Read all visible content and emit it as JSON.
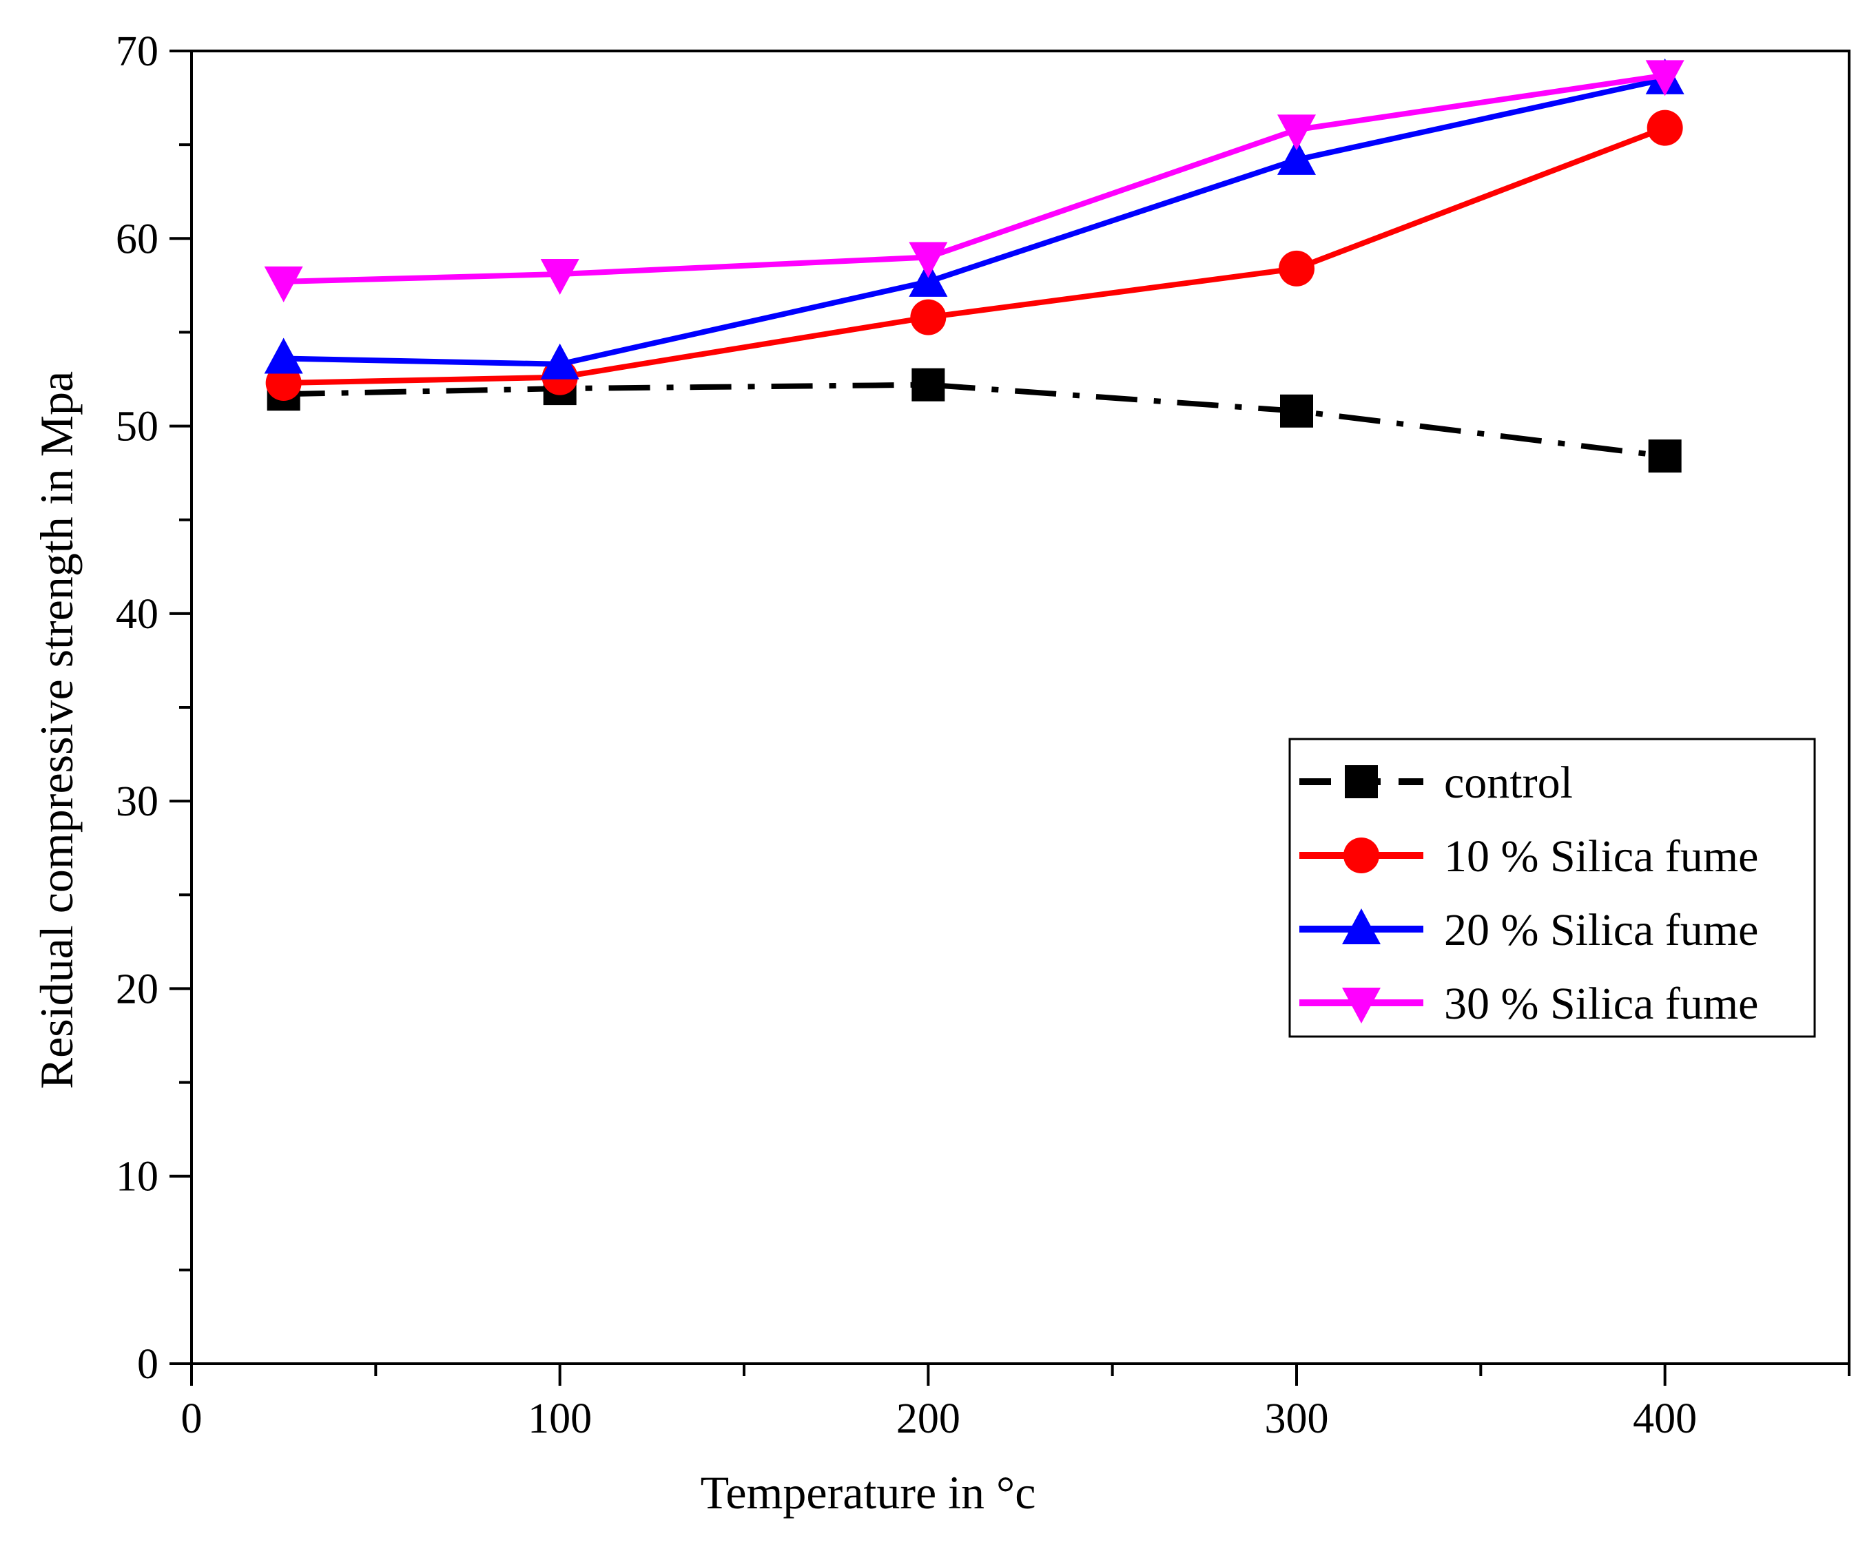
{
  "chart_data": {
    "type": "line",
    "title": "",
    "xlabel": "Temperature in °c",
    "ylabel": "Residual compressive strength in Mpa",
    "xlim": [
      0,
      450
    ],
    "ylim": [
      0,
      70
    ],
    "x_ticks": [
      0,
      100,
      200,
      300,
      400
    ],
    "x_tick_labels": [
      "0",
      "100",
      "200",
      "300",
      "400"
    ],
    "y_ticks": [
      0,
      10,
      20,
      30,
      40,
      50,
      60,
      70
    ],
    "y_tick_labels": [
      "0",
      "10",
      "20",
      "30",
      "40",
      "50",
      "60",
      "70"
    ],
    "grid": false,
    "legend_position": "right-middle",
    "x": [
      25,
      100,
      200,
      300,
      400
    ],
    "series": [
      {
        "name": "control",
        "values": [
          51.7,
          52.0,
          52.2,
          50.8,
          48.4
        ],
        "color": "#000000",
        "marker": "square",
        "dash": "dash-dot"
      },
      {
        "name": "10 % Silica fume",
        "values": [
          52.3,
          52.6,
          55.8,
          58.4,
          65.9
        ],
        "color": "#ff0000",
        "marker": "circle",
        "dash": "solid"
      },
      {
        "name": "20 % Silica fume",
        "values": [
          53.6,
          53.3,
          57.7,
          64.2,
          68.5
        ],
        "color": "#0000ff",
        "marker": "triangle-up",
        "dash": "solid"
      },
      {
        "name": "30 % Silica fume",
        "values": [
          57.7,
          58.1,
          59.0,
          65.8,
          68.7
        ],
        "color": "#ff00ff",
        "marker": "triangle-down",
        "dash": "solid"
      }
    ]
  }
}
